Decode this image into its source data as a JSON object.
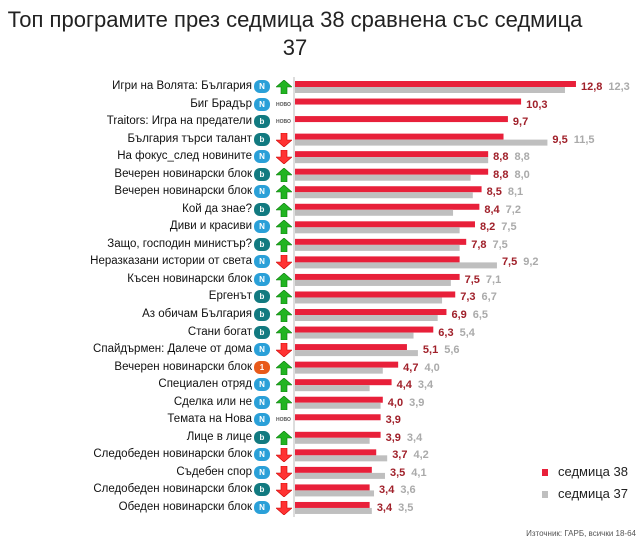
{
  "chart_data": {
    "type": "bar",
    "orientation": "horizontal",
    "title": "Топ програмите през седмица 38 сравнена със седмица 37",
    "source": "Източник: ГАРБ, всички 18-64",
    "legend_position": "bottom-right",
    "colors": {
      "current": "#e8203a",
      "previous": "#bfbfbf"
    },
    "categories": [
      "Игри на Волята: България",
      "Биг Брадър",
      "Traitors: Игра на предатели",
      "България търси талант",
      "На фокус_след новините",
      "Вечерен новинарски блок",
      "Вечерен новинарски блок",
      "Кой да знае?",
      "Диви и красиви",
      "Защо, господин министър?",
      "Неразказани истории от света",
      "Късен новинарски блок",
      "Ергенът",
      "Аз обичам България",
      "Стани богат",
      "Спайдърмен: Далече от дома",
      "Вечерен новинарски блок",
      "Специален отряд",
      "Сделка или не",
      "Темата на Нова",
      "Лице в лице",
      "Следобеден новинарски блок",
      "Съдебен спор",
      "Следобеден новинарски блок",
      "Обеден новинарски блок"
    ],
    "channels": [
      "nova",
      "nova",
      "btv",
      "btv",
      "nova",
      "btv",
      "nova",
      "btv",
      "nova",
      "btv",
      "nova",
      "nova",
      "btv",
      "btv",
      "btv",
      "nova",
      "bnt1",
      "nova",
      "nova",
      "nova",
      "btv",
      "nova",
      "nova",
      "btv",
      "nova"
    ],
    "trend": [
      "up",
      "new",
      "new",
      "down",
      "down",
      "up",
      "up",
      "up",
      "up",
      "up",
      "down",
      "up",
      "up",
      "up",
      "up",
      "down",
      "up",
      "up",
      "up",
      "new",
      "up",
      "down",
      "down",
      "down",
      "down"
    ],
    "new_label": "НОВО",
    "series": [
      {
        "name": "седмица 38",
        "values": [
          12.8,
          10.3,
          9.7,
          9.5,
          8.8,
          8.8,
          8.5,
          8.4,
          8.2,
          7.8,
          7.5,
          7.5,
          7.3,
          6.9,
          6.3,
          5.1,
          4.7,
          4.4,
          4.0,
          3.9,
          3.9,
          3.7,
          3.5,
          3.4,
          3.4
        ]
      },
      {
        "name": "седмица 37",
        "values": [
          12.3,
          null,
          null,
          11.5,
          8.8,
          8.0,
          8.1,
          7.2,
          7.5,
          7.5,
          9.2,
          7.1,
          6.7,
          6.5,
          5.4,
          5.6,
          4.0,
          3.4,
          3.9,
          null,
          3.4,
          4.2,
          4.1,
          3.6,
          3.5
        ]
      }
    ]
  }
}
